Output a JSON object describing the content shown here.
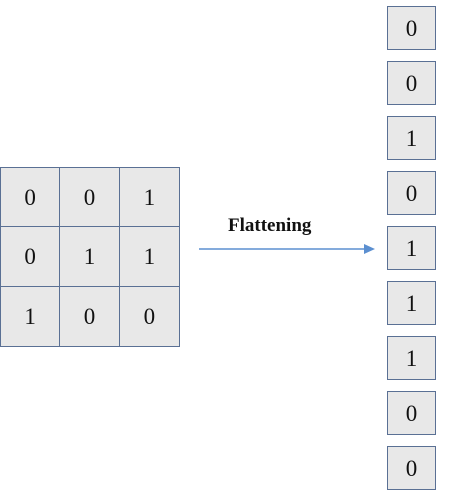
{
  "matrix": {
    "rows": [
      [
        "0",
        "0",
        "1"
      ],
      [
        "0",
        "1",
        "1"
      ],
      [
        "1",
        "0",
        "0"
      ]
    ]
  },
  "arrow": {
    "label": "Flattening",
    "color": "#5b8fd0"
  },
  "vector": {
    "values": [
      "0",
      "0",
      "1",
      "0",
      "1",
      "1",
      "1",
      "0",
      "0"
    ]
  }
}
